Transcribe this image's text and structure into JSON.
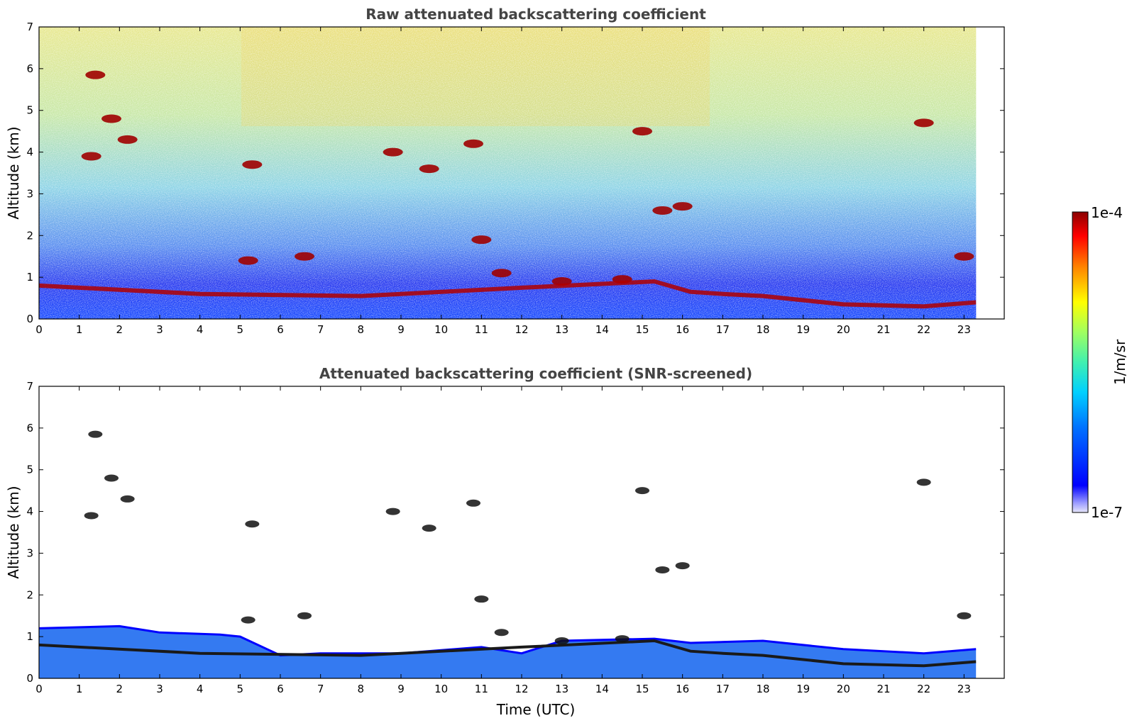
{
  "chart_data": [
    {
      "type": "heatmap",
      "title": "Raw attenuated backscattering coefficient",
      "ylabel": "Altitude (km)",
      "xlabel": "",
      "xlim": [
        0,
        24
      ],
      "ylim": [
        0,
        7
      ],
      "x_ticks": [
        "0",
        "1",
        "2",
        "3",
        "4",
        "5",
        "6",
        "7",
        "8",
        "9",
        "10",
        "11",
        "12",
        "13",
        "14",
        "15",
        "16",
        "17",
        "18",
        "19",
        "20",
        "21",
        "22",
        "23"
      ],
      "y_ticks": [
        "0",
        "1",
        "2",
        "3",
        "4",
        "5",
        "6",
        "7"
      ],
      "data_end_hour": 23.3,
      "boundary_layer_top_km": [
        {
          "x": 0,
          "y": 0.8
        },
        {
          "x": 4,
          "y": 0.6
        },
        {
          "x": 8,
          "y": 0.55
        },
        {
          "x": 9,
          "y": 0.6
        },
        {
          "x": 12,
          "y": 0.75
        },
        {
          "x": 15.3,
          "y": 0.9
        },
        {
          "x": 16.2,
          "y": 0.65
        },
        {
          "x": 17,
          "y": 0.6
        },
        {
          "x": 18,
          "y": 0.55
        },
        {
          "x": 19,
          "y": 0.45
        },
        {
          "x": 20,
          "y": 0.35
        },
        {
          "x": 22,
          "y": 0.3
        },
        {
          "x": 23.3,
          "y": 0.4
        }
      ],
      "cloud_features": [
        {
          "x": 1.3,
          "y": 3.9
        },
        {
          "x": 1.8,
          "y": 4.8
        },
        {
          "x": 2.2,
          "y": 4.3
        },
        {
          "x": 1.4,
          "y": 5.85
        },
        {
          "x": 5.3,
          "y": 3.7
        },
        {
          "x": 5.2,
          "y": 1.4
        },
        {
          "x": 6.6,
          "y": 1.5
        },
        {
          "x": 8.8,
          "y": 4.0
        },
        {
          "x": 9.7,
          "y": 3.6
        },
        {
          "x": 10.8,
          "y": 4.2
        },
        {
          "x": 11.0,
          "y": 1.9
        },
        {
          "x": 11.5,
          "y": 1.1
        },
        {
          "x": 13.0,
          "y": 0.9
        },
        {
          "x": 14.5,
          "y": 0.95
        },
        {
          "x": 15.0,
          "y": 4.5
        },
        {
          "x": 15.5,
          "y": 2.6
        },
        {
          "x": 16.0,
          "y": 2.7
        },
        {
          "x": 22.0,
          "y": 4.7
        },
        {
          "x": 23.0,
          "y": 1.5
        }
      ]
    },
    {
      "type": "heatmap",
      "title": "Attenuated backscattering coefficient (SNR-screened)",
      "ylabel": "Altitude (km)",
      "xlabel": "Time (UTC)",
      "xlim": [
        0,
        24
      ],
      "ylim": [
        0,
        7
      ],
      "x_ticks": [
        "0",
        "1",
        "2",
        "3",
        "4",
        "5",
        "6",
        "7",
        "8",
        "9",
        "10",
        "11",
        "12",
        "13",
        "14",
        "15",
        "16",
        "17",
        "18",
        "19",
        "20",
        "21",
        "22",
        "23"
      ],
      "y_ticks": [
        "0",
        "1",
        "2",
        "3",
        "4",
        "5",
        "6",
        "7"
      ],
      "data_end_hour": 23.3,
      "screened_aerosol_top_km": [
        {
          "x": 0,
          "y": 1.2
        },
        {
          "x": 2,
          "y": 1.25
        },
        {
          "x": 3,
          "y": 1.1
        },
        {
          "x": 4.5,
          "y": 1.05
        },
        {
          "x": 5,
          "y": 1.0
        },
        {
          "x": 6,
          "y": 0.55
        },
        {
          "x": 7,
          "y": 0.6
        },
        {
          "x": 8,
          "y": 0.6
        },
        {
          "x": 9,
          "y": 0.6
        },
        {
          "x": 11,
          "y": 0.75
        },
        {
          "x": 12,
          "y": 0.6
        },
        {
          "x": 13,
          "y": 0.9
        },
        {
          "x": 15.3,
          "y": 0.95
        },
        {
          "x": 16.2,
          "y": 0.85
        },
        {
          "x": 18,
          "y": 0.9
        },
        {
          "x": 20,
          "y": 0.7
        },
        {
          "x": 22,
          "y": 0.6
        },
        {
          "x": 23.3,
          "y": 0.7
        }
      ]
    }
  ],
  "colorbar": {
    "max_label": "1e-4",
    "min_label": "1e-7",
    "unit_label": "1/m/sr",
    "scale": "log",
    "colormap": "jet",
    "range": [
      1e-07,
      0.0001
    ]
  },
  "colors": {
    "title": "#444444",
    "axis": "#000000",
    "high": "#8b0000",
    "mid": "#ffff00",
    "low": "#0000ff",
    "floor": "#e6e6fa"
  }
}
